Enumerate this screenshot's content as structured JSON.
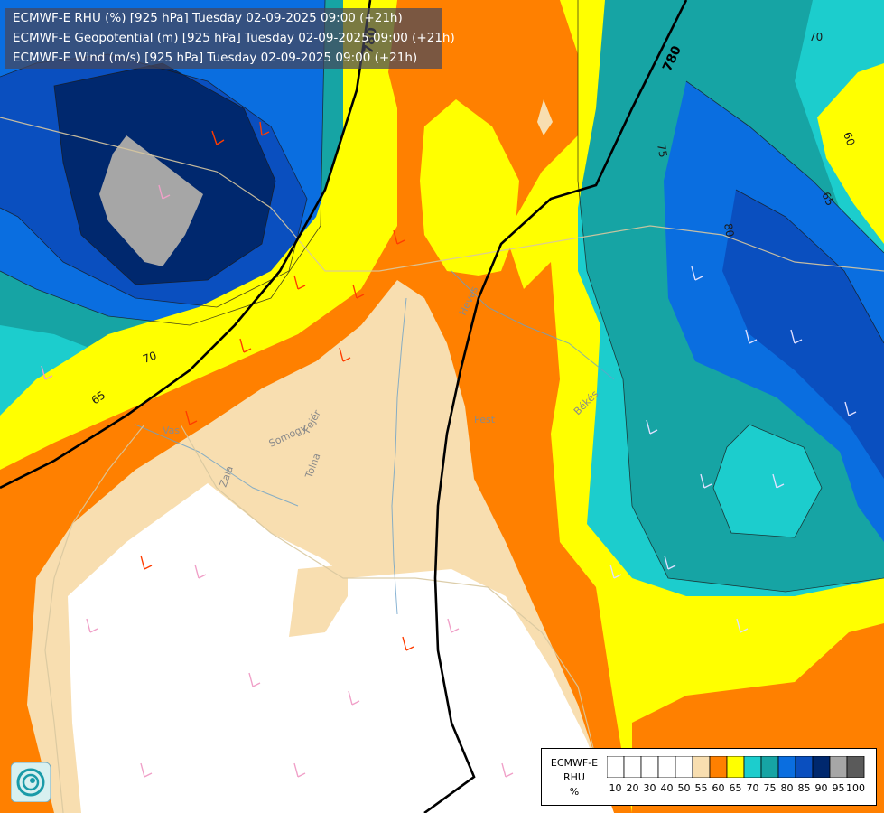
{
  "header": {
    "lines": [
      "ECMWF-E RHU (%) [925 hPa] Tuesday 02-09-2025 09:00 (+21h)",
      "ECMWF-E Geopotential (m) [925 hPa] Tuesday 02-09-2025 09:00 (+21h)",
      "ECMWF-E Wind (m/s) [925 hPa] Tuesday 02-09-2025 09:00 (+21h)"
    ]
  },
  "contour_labels": [
    "70",
    "75",
    "80",
    "60",
    "65",
    "65",
    "70",
    "780",
    "780"
  ],
  "region_labels": [
    "Vas",
    "Zala",
    "Somogy",
    "Fejér",
    "Tolna",
    "Pest",
    "Heves",
    "Békés"
  ],
  "legend": {
    "title_lines": [
      "ECMWF-E",
      "RHU",
      "%"
    ],
    "ticks": [
      "10",
      "20",
      "30",
      "40",
      "50",
      "55",
      "60",
      "65",
      "70",
      "75",
      "80",
      "85",
      "90",
      "95",
      "100"
    ],
    "colors": [
      "#ffffff",
      "#ffffff",
      "#ffffff",
      "#ffffff",
      "#ffffff",
      "#f8deb0",
      "#ff8000",
      "#ffff00",
      "#1ccdcd",
      "#16a4a4",
      "#0a6ee0",
      "#0a4fbf",
      "#00286e",
      "#a6a6a6",
      "#5a5a5a"
    ]
  },
  "colors": {
    "white": "#ffffff",
    "rh55": "#f8deb0",
    "rh60": "#ff8000",
    "rh65": "#ffff00",
    "rh70": "#1ccdcd",
    "rh75": "#16a4a4",
    "rh80": "#0a6ee0",
    "rh85": "#0a4fbf",
    "rh90": "#00286e",
    "rh95": "#a6a6a6"
  }
}
